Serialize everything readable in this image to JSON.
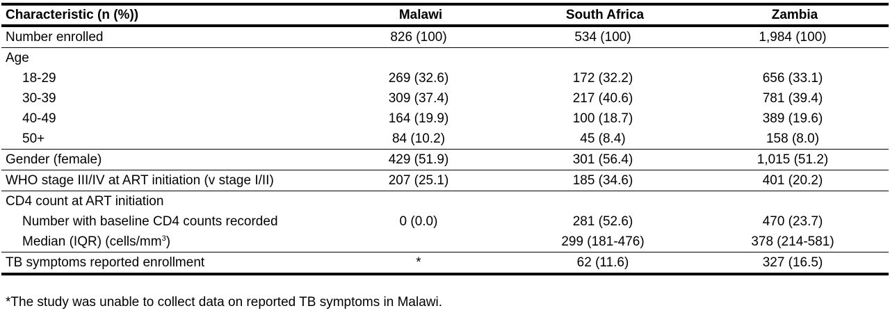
{
  "table": {
    "headers": [
      "Characteristic (n (%))",
      "Malawi",
      "South Africa",
      "Zambia"
    ],
    "rows": {
      "enrolled": {
        "label": "Number enrolled",
        "malawi": "826 (100)",
        "south_africa": "534 (100)",
        "zambia": "1,984 (100)"
      },
      "age": {
        "label": "Age"
      },
      "age_18_29": {
        "label": "18-29",
        "malawi": "269 (32.6)",
        "south_africa": "172 (32.2)",
        "zambia": "656 (33.1)"
      },
      "age_30_39": {
        "label": "30-39",
        "malawi": "309 (37.4)",
        "south_africa": "217 (40.6)",
        "zambia": "781 (39.4)"
      },
      "age_40_49": {
        "label": "40-49",
        "malawi": "164 (19.9)",
        "south_africa": "100 (18.7)",
        "zambia": "389 (19.6)"
      },
      "age_50_plus": {
        "label": "50+",
        "malawi": "84 (10.2)",
        "south_africa": "45 (8.4)",
        "zambia": "158 (8.0)"
      },
      "gender": {
        "label": "Gender (female)",
        "malawi": "429 (51.9)",
        "south_africa": "301 (56.4)",
        "zambia": "1,015 (51.2)"
      },
      "who_stage": {
        "label": "WHO stage III/IV at ART initiation (v stage I/II)",
        "malawi": "207 (25.1)",
        "south_africa": "185 (34.6)",
        "zambia": "401 (20.2)"
      },
      "cd4": {
        "label": "CD4 count at ART initiation"
      },
      "cd4_recorded": {
        "label": "Number with baseline CD4 counts recorded",
        "malawi": "0 (0.0)",
        "south_africa": "281 (52.6)",
        "zambia": "470 (23.7)"
      },
      "cd4_median": {
        "label": "Median (IQR) (cells/mm",
        "label_sup": "3",
        "label_end": ")",
        "malawi": "",
        "south_africa": "299 (181-476)",
        "zambia": "378 (214-581)"
      },
      "tb": {
        "label": "TB symptoms reported enrollment",
        "malawi": "*",
        "south_africa": "62 (11.6)",
        "zambia": "327 (16.5)"
      }
    }
  },
  "footnote": "*The study was unable to collect data on reported TB symptoms in Malawi."
}
